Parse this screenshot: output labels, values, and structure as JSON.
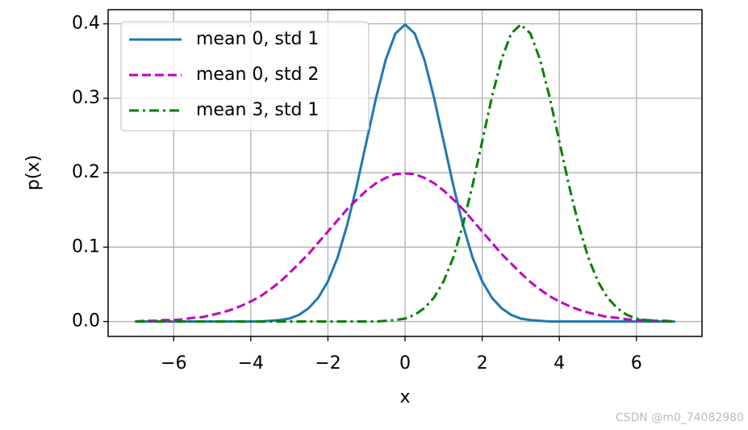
{
  "chart_data": {
    "type": "line",
    "xlabel": "x",
    "ylabel": "p(x)",
    "watermark": "CSDN @m0_74082980",
    "xlim": [
      -7.7,
      7.7
    ],
    "ylim": [
      -0.02,
      0.419
    ],
    "xticks": [
      {
        "value": -6,
        "label": "−6"
      },
      {
        "value": -4,
        "label": "−4"
      },
      {
        "value": -2,
        "label": "−2"
      },
      0,
      2,
      4,
      6
    ],
    "yticks": [
      {
        "value": 0,
        "label": "0.0"
      },
      0.1,
      0.2,
      0.3,
      0.4
    ],
    "grid": true,
    "legend": "upper left",
    "x": [
      -7,
      -6.75,
      -6.5,
      -6.25,
      -6,
      -5.75,
      -5.5,
      -5.25,
      -5,
      -4.75,
      -4.5,
      -4.25,
      -4,
      -3.75,
      -3.5,
      -3.25,
      -3,
      -2.75,
      -2.5,
      -2.25,
      -2,
      -1.75,
      -1.5,
      -1.25,
      -1,
      -0.75,
      -0.5,
      -0.25,
      0,
      0.25,
      0.5,
      0.75,
      1,
      1.25,
      1.5,
      1.75,
      2,
      2.25,
      2.5,
      2.75,
      3,
      3.25,
      3.5,
      3.75,
      4,
      4.25,
      4.5,
      4.75,
      5,
      5.25,
      5.5,
      5.75,
      6,
      6.25,
      6.5,
      6.75,
      7
    ],
    "series": [
      {
        "name": "mean 0, std 1",
        "color": "#1f77b4",
        "linestyle": "solid",
        "values": [
          0,
          0,
          0,
          0,
          0,
          0,
          0,
          0,
          0,
          0,
          0,
          0,
          0,
          0,
          0.001,
          0.002,
          0.004,
          0.009,
          0.018,
          0.032,
          0.054,
          0.086,
          0.13,
          0.183,
          0.242,
          0.301,
          0.352,
          0.387,
          0.399,
          0.387,
          0.352,
          0.301,
          0.242,
          0.183,
          0.13,
          0.086,
          0.054,
          0.032,
          0.018,
          0.009,
          0.004,
          0.002,
          0.001,
          0,
          0,
          0,
          0,
          0,
          0,
          0,
          0,
          0,
          0,
          0,
          0,
          0,
          0
        ]
      },
      {
        "name": "mean 0, std 2",
        "color": "#bf00bf",
        "linestyle": "dashed",
        "values": [
          0,
          0.001,
          0.001,
          0.002,
          0.002,
          0.003,
          0.005,
          0.006,
          0.009,
          0.012,
          0.016,
          0.021,
          0.027,
          0.034,
          0.043,
          0.053,
          0.065,
          0.078,
          0.091,
          0.106,
          0.121,
          0.136,
          0.151,
          0.164,
          0.176,
          0.186,
          0.193,
          0.198,
          0.199,
          0.198,
          0.193,
          0.186,
          0.176,
          0.164,
          0.151,
          0.136,
          0.121,
          0.106,
          0.091,
          0.078,
          0.065,
          0.053,
          0.043,
          0.034,
          0.027,
          0.021,
          0.016,
          0.012,
          0.009,
          0.006,
          0.005,
          0.003,
          0.002,
          0.002,
          0.001,
          0.001,
          0
        ]
      },
      {
        "name": "mean 3, std 1",
        "color": "#008000",
        "linestyle": "dashdot",
        "values": [
          0,
          0,
          0,
          0,
          0,
          0,
          0,
          0,
          0,
          0,
          0,
          0,
          0,
          0,
          0,
          0,
          0,
          0,
          0,
          0,
          0,
          0,
          0,
          0,
          0,
          0,
          0.001,
          0.002,
          0.004,
          0.009,
          0.018,
          0.032,
          0.054,
          0.086,
          0.13,
          0.183,
          0.242,
          0.301,
          0.352,
          0.387,
          0.399,
          0.387,
          0.352,
          0.301,
          0.242,
          0.183,
          0.13,
          0.086,
          0.054,
          0.032,
          0.018,
          0.009,
          0.004,
          0.002,
          0.001,
          0,
          0
        ]
      }
    ]
  }
}
